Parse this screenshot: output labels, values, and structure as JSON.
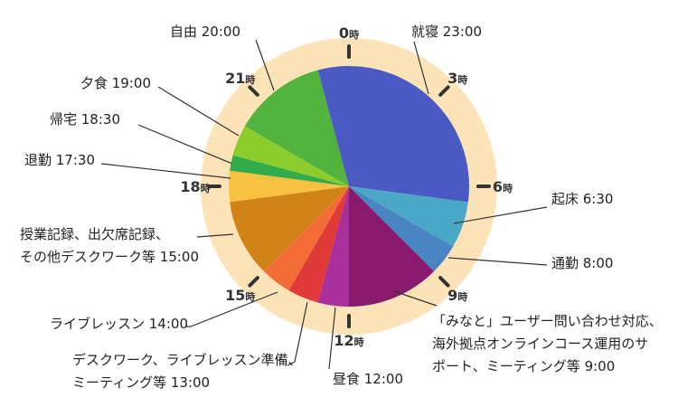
{
  "colors": {
    "ring": "#fde3b8",
    "tick": "#333333",
    "leader": "#333333"
  },
  "chart_data": {
    "type": "pie",
    "title": "",
    "clock_hours": 24,
    "hour_labels": [
      {
        "hour": 0,
        "num": "0",
        "suffix": "時"
      },
      {
        "hour": 3,
        "num": "3",
        "suffix": "時"
      },
      {
        "hour": 6,
        "num": "6",
        "suffix": "時"
      },
      {
        "hour": 9,
        "num": "9",
        "suffix": "時"
      },
      {
        "hour": 12,
        "num": "12",
        "suffix": "時"
      },
      {
        "hour": 15,
        "num": "15",
        "suffix": "時"
      },
      {
        "hour": 18,
        "num": "18",
        "suffix": "時"
      },
      {
        "hour": 21,
        "num": "21",
        "suffix": "時"
      }
    ],
    "segments": [
      {
        "start": 23.0,
        "end": 6.5,
        "color": "#4a5ac2",
        "lines": [
          "就寝 23:00"
        ]
      },
      {
        "start": 6.5,
        "end": 8.0,
        "color": "#4aa8c6",
        "lines": [
          "起床 6:30"
        ]
      },
      {
        "start": 8.0,
        "end": 9.0,
        "color": "#4a84c2",
        "lines": [
          "通勤 8:00"
        ]
      },
      {
        "start": 9.0,
        "end": 12.0,
        "color": "#8a1a6e",
        "lines": [
          "「みなと」ユーザー問い合わせ対応、",
          "海外拠点オンラインコース運用のサ",
          "ポート、ミーティング等 9:00"
        ]
      },
      {
        "start": 12.0,
        "end": 13.0,
        "color": "#a8309a",
        "lines": [
          "昼食 12:00"
        ]
      },
      {
        "start": 13.0,
        "end": 14.0,
        "color": "#e03a3a",
        "lines": [
          "デスクワーク、ライブレッスン準備、",
          "ミーティング等 13:00"
        ]
      },
      {
        "start": 14.0,
        "end": 15.0,
        "color": "#f26d38",
        "lines": [
          "ライブレッスン 14:00"
        ]
      },
      {
        "start": 15.0,
        "end": 17.5,
        "color": "#d08418",
        "lines": [
          "授業記録、出欠席記録、",
          "その他デスクワーク等 15:00"
        ]
      },
      {
        "start": 17.5,
        "end": 18.5,
        "color": "#f7c242",
        "lines": [
          "退勤 17:30"
        ]
      },
      {
        "start": 18.5,
        "end": 19.0,
        "color": "#32ab4a",
        "lines": [
          "帰宅 18:30"
        ]
      },
      {
        "start": 19.0,
        "end": 20.0,
        "color": "#8ccc2c",
        "lines": [
          "夕食 19:00"
        ]
      },
      {
        "start": 20.0,
        "end": 23.0,
        "color": "#52b43e",
        "lines": [
          "自由 20:00"
        ]
      }
    ]
  }
}
